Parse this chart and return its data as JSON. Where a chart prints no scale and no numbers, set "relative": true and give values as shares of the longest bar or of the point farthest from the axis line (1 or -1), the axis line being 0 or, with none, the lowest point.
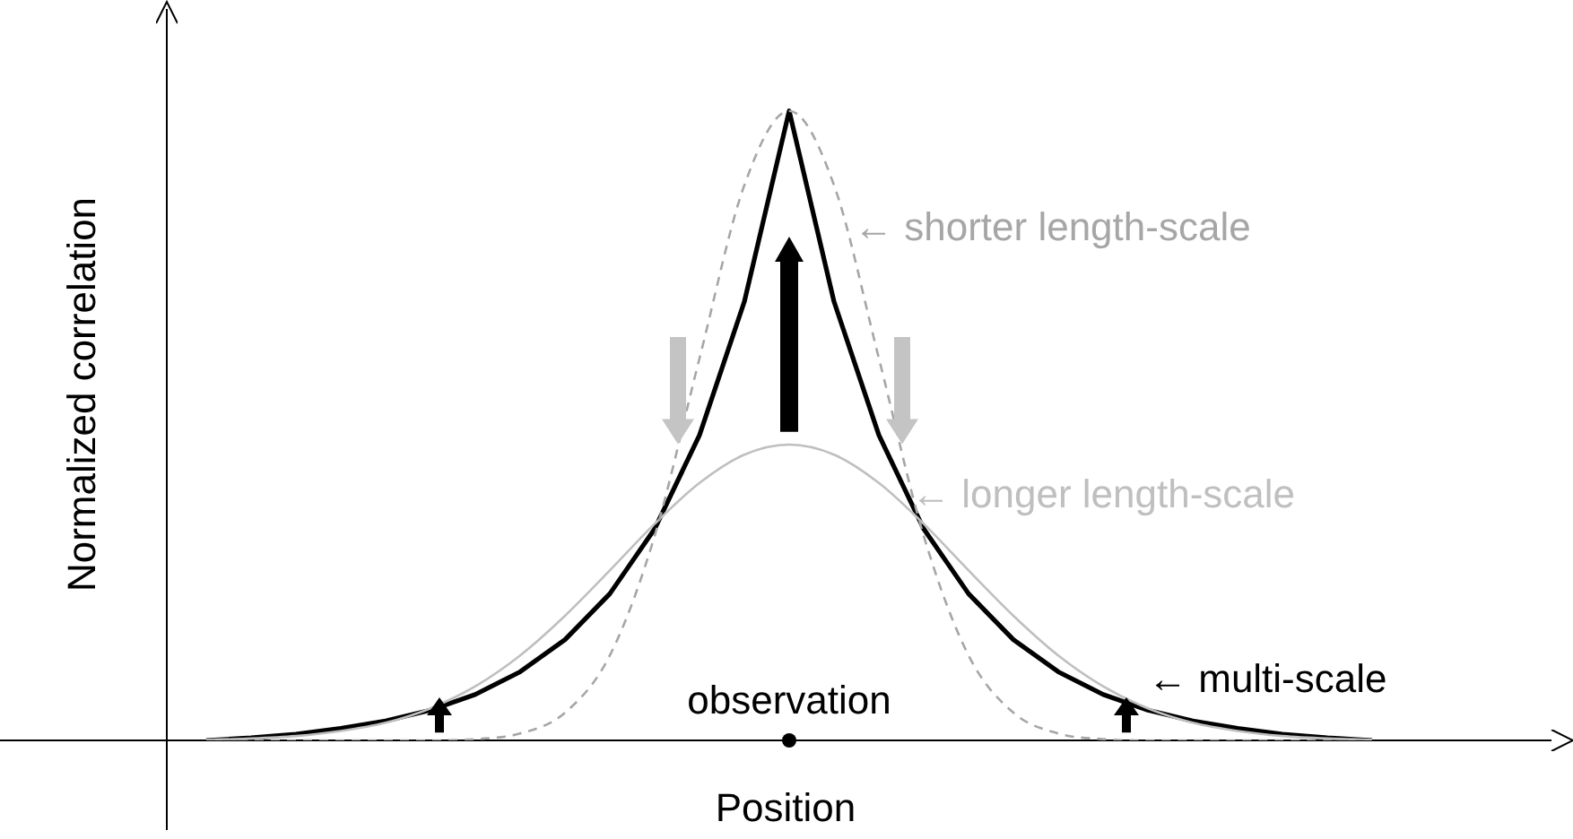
{
  "chart_data": {
    "type": "line",
    "relative": true,
    "xlabel": "Position",
    "ylabel": "Normalized correlation",
    "marker": "none",
    "categories": [
      null,
      null,
      null,
      null,
      null,
      null,
      null,
      null,
      null,
      null,
      null,
      null,
      null,
      null,
      null,
      null,
      null,
      null,
      null,
      null,
      null,
      null,
      null,
      null,
      null,
      null,
      null
    ],
    "annotations": [
      "observation"
    ],
    "series": [
      {
        "name": "← shorter length-scale",
        "color": "#a6a6a6",
        "line_style": "dashed",
        "values": [
          0,
          0,
          0,
          0,
          0,
          0,
          0.002,
          0.011,
          0.044,
          0.135,
          0.325,
          0.607,
          0.882,
          1,
          0.882,
          0.607,
          0.325,
          0.135,
          0.044,
          0.011,
          0.002,
          0,
          0,
          0,
          0,
          0,
          0
        ]
      },
      {
        "name": "← longer length-scale",
        "color": "#bfbfbf",
        "line_style": "solid",
        "values": [
          0.001,
          0.003,
          0.007,
          0.015,
          0.028,
          0.051,
          0.086,
          0.135,
          0.198,
          0.27,
          0.344,
          0.409,
          0.454,
          0.47,
          0.454,
          0.409,
          0.344,
          0.27,
          0.198,
          0.135,
          0.086,
          0.051,
          0.028,
          0.015,
          0.007,
          0.003,
          0.001
        ]
      },
      {
        "name": "← multi-scale",
        "color": "#000000",
        "line_style": "solid",
        "values": [
          0,
          0.004,
          0.01,
          0.019,
          0.031,
          0.048,
          0.073,
          0.109,
          0.16,
          0.233,
          0.336,
          0.485,
          0.697,
          1,
          0.697,
          0.485,
          0.336,
          0.233,
          0.16,
          0.109,
          0.073,
          0.048,
          0.031,
          0.019,
          0.01,
          0.004,
          0
        ]
      }
    ]
  }
}
